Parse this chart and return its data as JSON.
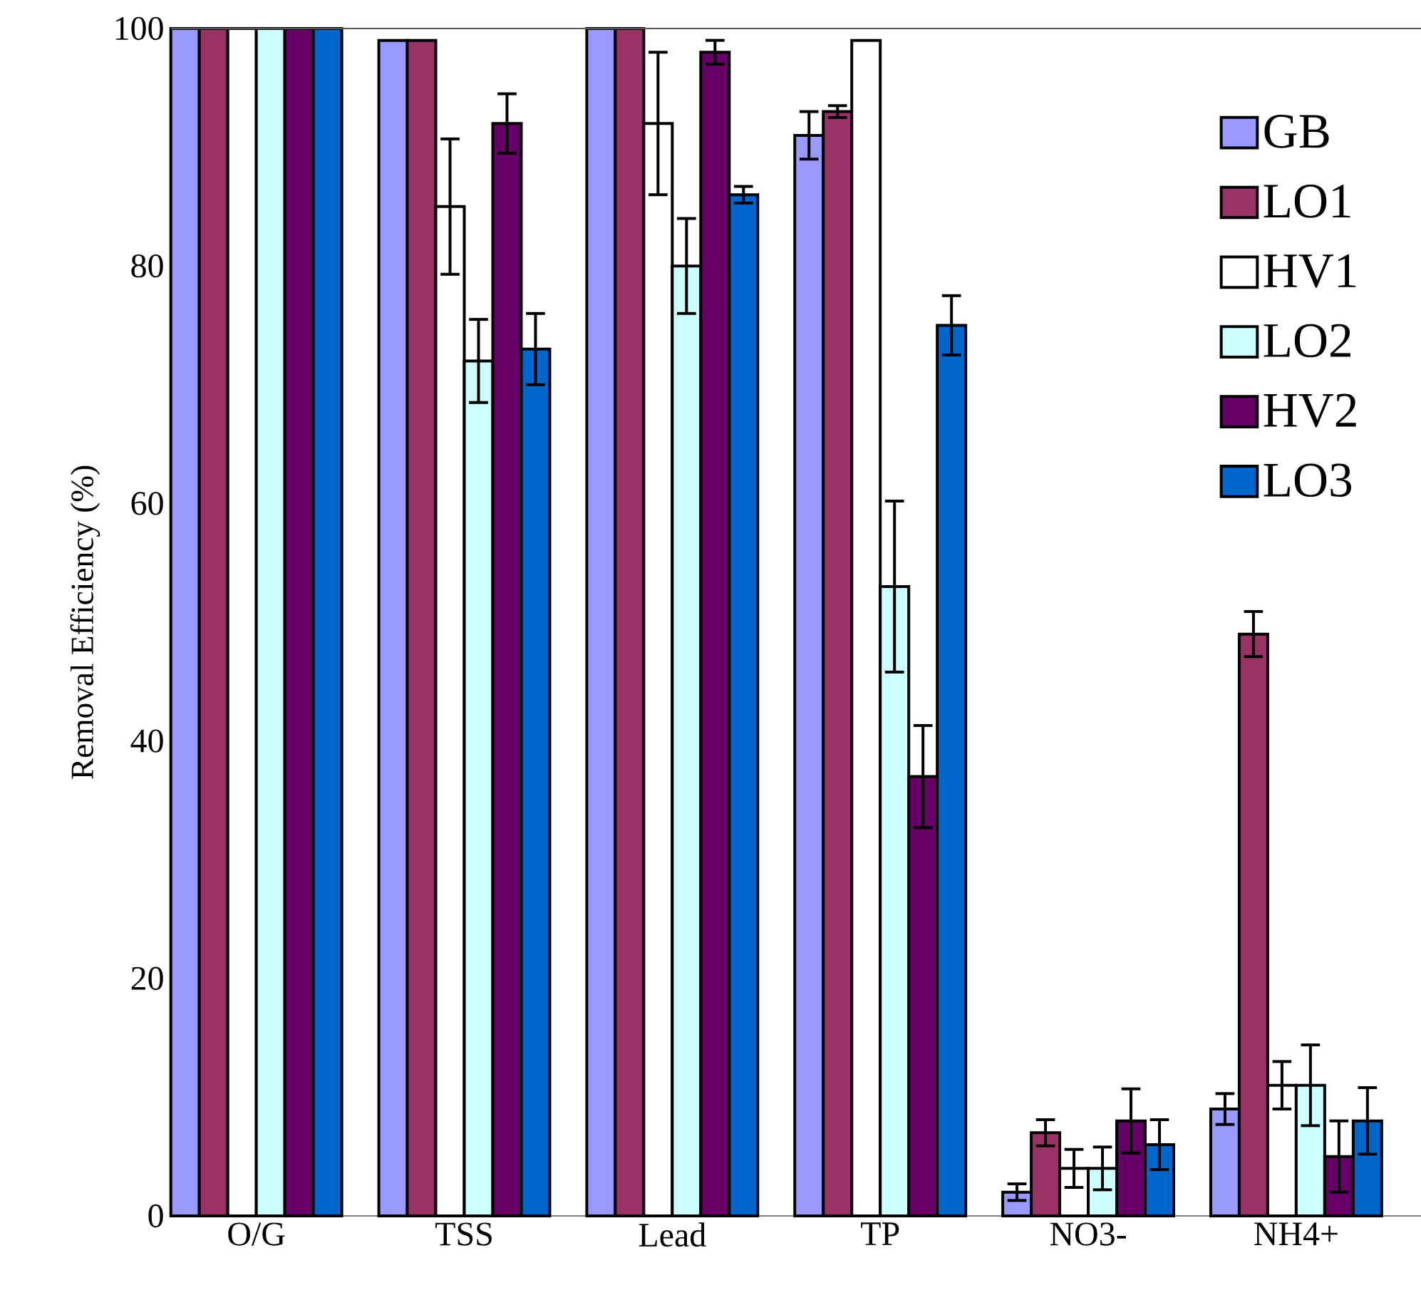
{
  "chart_data": {
    "type": "bar",
    "ylabel": "Removal Efficiency (%)",
    "categories": [
      "O/G",
      "TSS",
      "Lead",
      "TP",
      "NO3-",
      "NH4+"
    ],
    "series": [
      {
        "name": "GB",
        "color": "#9999ff",
        "values": [
          100,
          99,
          100,
          91,
          2,
          9
        ],
        "errors": [
          null,
          null,
          null,
          2,
          0.7,
          1.3
        ]
      },
      {
        "name": "LO1",
        "color": "#993366",
        "values": [
          100,
          99,
          100,
          93,
          7,
          49
        ],
        "errors": [
          null,
          null,
          null,
          0.5,
          1.1,
          1.9
        ]
      },
      {
        "name": "HV1",
        "color": "#ffffff",
        "values": [
          100,
          85,
          92,
          99,
          4,
          11
        ],
        "errors": [
          null,
          5.7,
          6,
          null,
          1.6,
          2
        ]
      },
      {
        "name": "LO2",
        "color": "#ccffff",
        "values": [
          100,
          72,
          80,
          53,
          4,
          11
        ],
        "errors": [
          null,
          3.5,
          4,
          7.2,
          1.8,
          3.4
        ]
      },
      {
        "name": "HV2",
        "color": "#660066",
        "values": [
          100,
          92,
          98,
          37,
          8,
          5
        ],
        "errors": [
          null,
          2.5,
          1,
          4.3,
          2.7,
          3
        ]
      },
      {
        "name": "LO3",
        "color": "#0066cc",
        "values": [
          100,
          73,
          86,
          75,
          6,
          8
        ],
        "errors": [
          null,
          3,
          0.7,
          2.5,
          2.1,
          2.8
        ]
      }
    ],
    "ylim": [
      0,
      100
    ],
    "yticks": [
      0,
      20,
      40,
      60,
      80,
      100
    ],
    "legend": "top right",
    "grid": false
  }
}
